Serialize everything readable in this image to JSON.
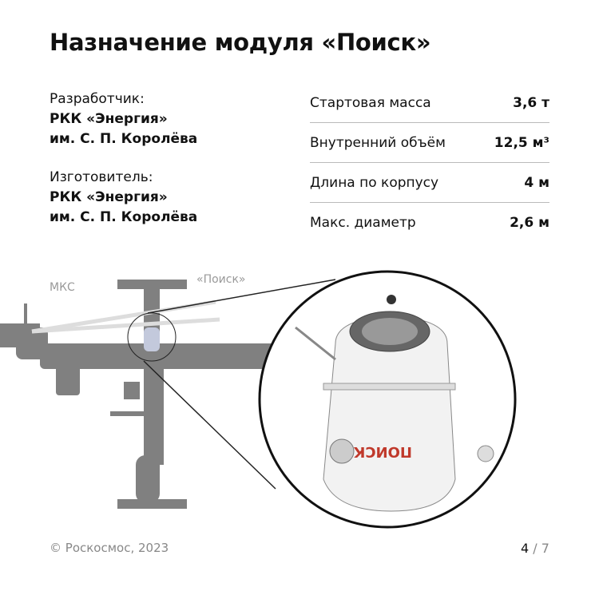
{
  "title": "Назначение модуля «Поиск»",
  "developer": {
    "label": "Разработчик:",
    "line1": "РКК «Энергия»",
    "line2": "им. С. П. Королёва"
  },
  "manufacturer": {
    "label": "Изготовитель:",
    "line1": "РКК «Энергия»",
    "line2": "им. С. П. Королёва"
  },
  "specs": [
    {
      "label": "Стартовая масса",
      "value": "3,6 т"
    },
    {
      "label": "Внутренний объём",
      "value": "12,5 м³"
    },
    {
      "label": "Длина по корпусу",
      "value": "4 м"
    },
    {
      "label": "Макс. диаметр",
      "value": "2,6 м"
    }
  ],
  "diagram": {
    "iss_label": "МКС",
    "module_label": "«Поиск»",
    "module_text": "ПОИСК",
    "highlight_color": "#c3c9dc",
    "station_color": "#808080"
  },
  "footer": {
    "copyright": "© Роскосмос, 2023",
    "page_current": "4",
    "page_total": "/ 7"
  }
}
